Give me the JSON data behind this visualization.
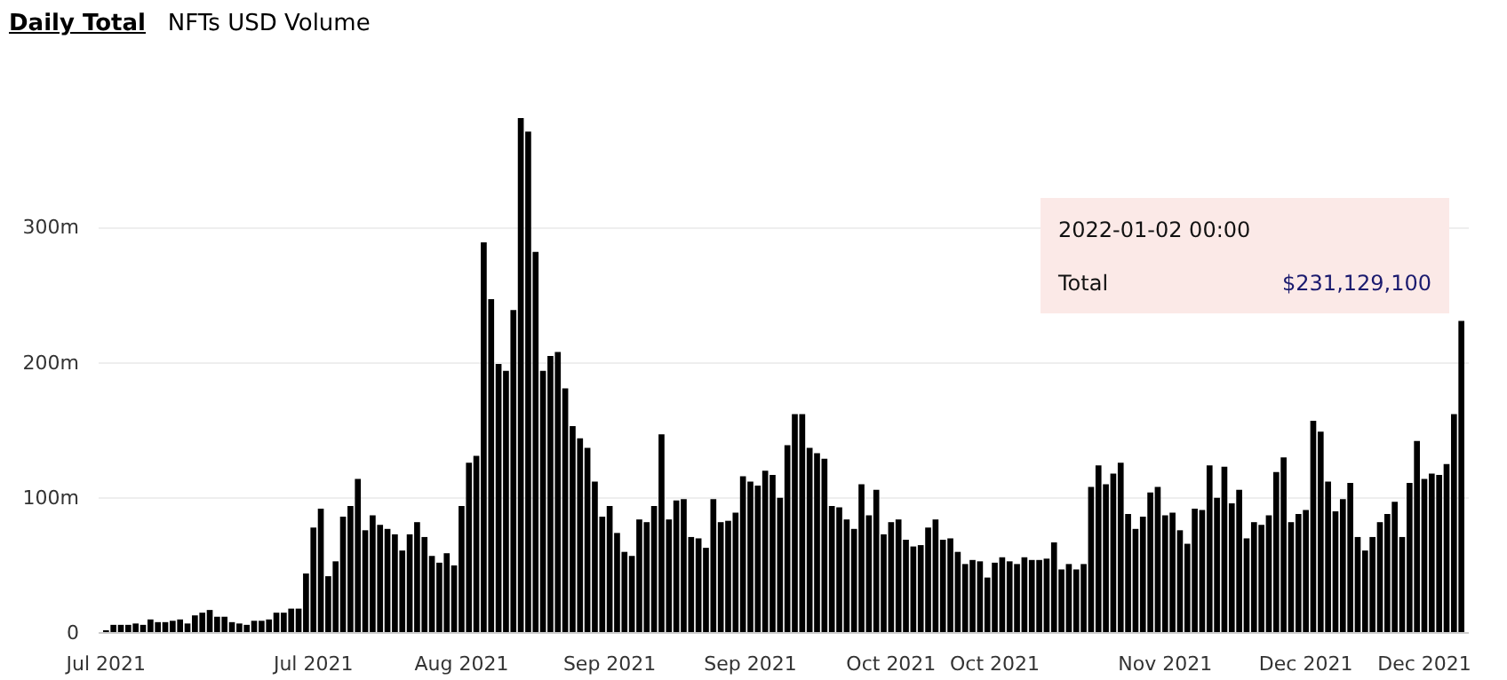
{
  "chart_data": {
    "type": "bar",
    "title": "Daily Total",
    "subtitle": "NFTs USD Volume",
    "x": [
      "2021-07-03",
      "2021-07-04",
      "2021-07-05",
      "2021-07-06",
      "2021-07-07",
      "2021-07-08",
      "2021-07-09",
      "2021-07-10",
      "2021-07-11",
      "2021-07-12",
      "2021-07-13",
      "2021-07-14",
      "2021-07-15",
      "2021-07-16",
      "2021-07-17",
      "2021-07-18",
      "2021-07-19",
      "2021-07-20",
      "2021-07-21",
      "2021-07-22",
      "2021-07-23",
      "2021-07-24",
      "2021-07-25",
      "2021-07-26",
      "2021-07-27",
      "2021-07-28",
      "2021-07-29",
      "2021-07-30",
      "2021-07-31",
      "2021-08-01",
      "2021-08-02",
      "2021-08-03",
      "2021-08-04",
      "2021-08-05",
      "2021-08-06",
      "2021-08-07",
      "2021-08-08",
      "2021-08-09",
      "2021-08-10",
      "2021-08-11",
      "2021-08-12",
      "2021-08-13",
      "2021-08-14",
      "2021-08-15",
      "2021-08-16",
      "2021-08-17",
      "2021-08-18",
      "2021-08-19",
      "2021-08-20",
      "2021-08-21",
      "2021-08-22",
      "2021-08-23",
      "2021-08-24",
      "2021-08-25",
      "2021-08-26",
      "2021-08-27",
      "2021-08-28",
      "2021-08-29",
      "2021-08-30",
      "2021-08-31",
      "2021-09-01",
      "2021-09-02",
      "2021-09-03",
      "2021-09-04",
      "2021-09-05",
      "2021-09-06",
      "2021-09-07",
      "2021-09-08",
      "2021-09-09",
      "2021-09-10",
      "2021-09-11",
      "2021-09-12",
      "2021-09-13",
      "2021-09-14",
      "2021-09-15",
      "2021-09-16",
      "2021-09-17",
      "2021-09-18",
      "2021-09-19",
      "2021-09-20",
      "2021-09-21",
      "2021-09-22",
      "2021-09-23",
      "2021-09-24",
      "2021-09-25",
      "2021-09-26",
      "2021-09-27",
      "2021-09-28",
      "2021-09-29",
      "2021-09-30",
      "2021-10-01",
      "2021-10-02",
      "2021-10-03",
      "2021-10-04",
      "2021-10-05",
      "2021-10-06",
      "2021-10-07",
      "2021-10-08",
      "2021-10-09",
      "2021-10-10",
      "2021-10-11",
      "2021-10-12",
      "2021-10-13",
      "2021-10-14",
      "2021-10-15",
      "2021-10-16",
      "2021-10-17",
      "2021-10-18",
      "2021-10-19",
      "2021-10-20",
      "2021-10-21",
      "2021-10-22",
      "2021-10-23",
      "2021-10-24",
      "2021-10-25",
      "2021-10-26",
      "2021-10-27",
      "2021-10-28",
      "2021-10-29",
      "2021-10-30",
      "2021-10-31",
      "2021-11-01",
      "2021-11-02",
      "2021-11-03",
      "2021-11-04",
      "2021-11-05",
      "2021-11-06",
      "2021-11-07",
      "2021-11-08",
      "2021-11-09",
      "2021-11-10",
      "2021-11-11",
      "2021-11-12",
      "2021-11-13",
      "2021-11-14",
      "2021-11-15",
      "2021-11-16",
      "2021-11-17",
      "2021-11-18",
      "2021-11-19",
      "2021-11-20",
      "2021-11-21",
      "2021-11-22",
      "2021-11-23",
      "2021-11-24",
      "2021-11-25",
      "2021-11-26",
      "2021-11-27",
      "2021-11-28",
      "2021-11-29",
      "2021-11-30",
      "2021-12-01",
      "2021-12-02",
      "2021-12-03",
      "2021-12-04",
      "2021-12-05",
      "2021-12-06",
      "2021-12-07",
      "2021-12-08",
      "2021-12-09",
      "2021-12-10",
      "2021-12-11",
      "2021-12-12",
      "2021-12-13",
      "2021-12-14",
      "2021-12-15",
      "2021-12-16",
      "2021-12-17",
      "2021-12-18",
      "2021-12-19",
      "2021-12-20",
      "2021-12-21",
      "2021-12-22",
      "2021-12-23",
      "2021-12-24",
      "2021-12-25",
      "2021-12-26",
      "2021-12-27",
      "2021-12-28",
      "2021-12-29",
      "2021-12-30",
      "2021-12-31",
      "2022-01-01",
      "2022-01-02"
    ],
    "series": [
      {
        "color": "#000000",
        "values": [
          2,
          6,
          6,
          6,
          7,
          6,
          10,
          8,
          8,
          9,
          10,
          7,
          13,
          15,
          17,
          12,
          12,
          8,
          7,
          6,
          9,
          9,
          10,
          15,
          15,
          18,
          18,
          44,
          78,
          92,
          42,
          53,
          86,
          94,
          114,
          76,
          87,
          80,
          77,
          73,
          61,
          73,
          82,
          71,
          57,
          52,
          59,
          50,
          94,
          126,
          131,
          289,
          247,
          199,
          194,
          239,
          381,
          371,
          282,
          194,
          205,
          208,
          181,
          153,
          144,
          137,
          112,
          86,
          94,
          74,
          60,
          57,
          84,
          82,
          94,
          147,
          84,
          98,
          99,
          71,
          70,
          63,
          99,
          82,
          83,
          89,
          116,
          112,
          109,
          120,
          117,
          100,
          139,
          162,
          162,
          137,
          133,
          129,
          94,
          93,
          84,
          77,
          110,
          87,
          106,
          73,
          82,
          84,
          69,
          64,
          65,
          78,
          84,
          69,
          70,
          60,
          51,
          54,
          53,
          41,
          52,
          56,
          53,
          51,
          56,
          54,
          54,
          55,
          67,
          47,
          51,
          47,
          51,
          108,
          124,
          110,
          118,
          126,
          88,
          77,
          86,
          104,
          108,
          87,
          89,
          76,
          66,
          92,
          91,
          124,
          100,
          123,
          96,
          106,
          70,
          82,
          80,
          87,
          119,
          130,
          82,
          88,
          91,
          157,
          149,
          112,
          90,
          99,
          111,
          71,
          61,
          71,
          82,
          88,
          97,
          71,
          111,
          142,
          114,
          118,
          117,
          125,
          162,
          231
        ]
      }
    ],
    "xlim": [
      "2021-07-02",
      "2022-01-03"
    ],
    "xticks": [
      {
        "value": "2021-07-03",
        "label": "Jul 2021"
      },
      {
        "value": "2021-07-31",
        "label": "Jul 2021"
      },
      {
        "value": "2021-08-20",
        "label": "Aug 2021"
      },
      {
        "value": "2021-09-09",
        "label": "Sep 2021"
      },
      {
        "value": "2021-09-28",
        "label": "Sep 2021"
      },
      {
        "value": "2021-10-17",
        "label": "Oct 2021"
      },
      {
        "value": "2021-10-31",
        "label": "Oct 2021"
      },
      {
        "value": "2021-11-23",
        "label": "Nov 2021"
      },
      {
        "value": "2021-12-12",
        "label": "Dec 2021"
      },
      {
        "value": "2021-12-28",
        "label": "Dec 2021"
      }
    ],
    "ylim": [
      0,
      385
    ],
    "yticks": [
      0,
      {
        "value": 100,
        "label": "100m"
      },
      {
        "value": 200,
        "label": "200m"
      },
      {
        "value": 300,
        "label": "300m"
      }
    ],
    "grid": "y",
    "annotations": [
      "2022-01-02 00:00",
      "Total",
      "$231,129,100"
    ]
  }
}
